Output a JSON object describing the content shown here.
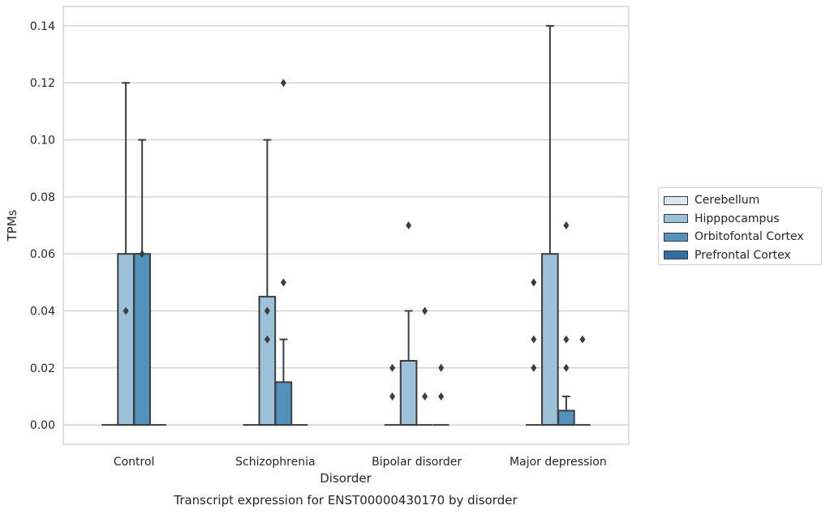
{
  "chart_data": {
    "type": "box",
    "caption": "Transcript expression for ENST00000430170 by disorder",
    "xlabel": "Disorder",
    "ylabel": "TPMs",
    "ylim": [
      -0.0068,
      0.1468
    ],
    "yticks": [
      "0.00",
      "0.02",
      "0.04",
      "0.06",
      "0.08",
      "0.10",
      "0.12",
      "0.14"
    ],
    "grid": "horizontal",
    "legend_position": "right",
    "categories": [
      "Control",
      "Schizophrenia",
      "Bipolar disorder",
      "Major depression"
    ],
    "series": [
      {
        "name": "Cerebellum",
        "color": "#dbe8f3",
        "boxes": [
          {
            "category": "Control",
            "q1": 0,
            "median": 0,
            "q3": 0,
            "whisker_low": 0,
            "whisker_high": 0,
            "outliers": []
          },
          {
            "category": "Schizophrenia",
            "q1": 0,
            "median": 0,
            "q3": 0,
            "whisker_low": 0,
            "whisker_high": 0,
            "outliers": []
          },
          {
            "category": "Bipolar disorder",
            "q1": 0,
            "median": 0,
            "q3": 0,
            "whisker_low": 0,
            "whisker_high": 0,
            "outliers": [
              0.01,
              0.02
            ]
          },
          {
            "category": "Major depression",
            "q1": 0,
            "median": 0,
            "q3": 0,
            "whisker_low": 0,
            "whisker_high": 0,
            "outliers": [
              0.02,
              0.03,
              0.05
            ]
          }
        ]
      },
      {
        "name": "Hipppocampus",
        "color": "#9cc2da",
        "boxes": [
          {
            "category": "Control",
            "q1": 0,
            "median": 0,
            "q3": 0.06,
            "whisker_low": 0,
            "whisker_high": 0.12,
            "outliers": [
              0.04
            ]
          },
          {
            "category": "Schizophrenia",
            "q1": 0,
            "median": 0,
            "q3": 0.045,
            "whisker_low": 0,
            "whisker_high": 0.1,
            "outliers": [
              0.03,
              0.04
            ]
          },
          {
            "category": "Bipolar disorder",
            "q1": 0,
            "median": 0,
            "q3": 0.0225,
            "whisker_low": 0,
            "whisker_high": 0.04,
            "outliers": [
              0.07
            ]
          },
          {
            "category": "Major depression",
            "q1": 0,
            "median": 0,
            "q3": 0.06,
            "whisker_low": 0,
            "whisker_high": 0.14,
            "outliers": []
          }
        ]
      },
      {
        "name": "Orbitofontal Cortex",
        "color": "#5192bf",
        "boxes": [
          {
            "category": "Control",
            "q1": 0,
            "median": 0,
            "q3": 0.06,
            "whisker_low": 0,
            "whisker_high": 0.1,
            "outliers": [
              0.06
            ]
          },
          {
            "category": "Schizophrenia",
            "q1": 0,
            "median": 0,
            "q3": 0.015,
            "whisker_low": 0,
            "whisker_high": 0.03,
            "outliers": [
              0.05,
              0.12
            ]
          },
          {
            "category": "Bipolar disorder",
            "q1": 0,
            "median": 0,
            "q3": 0,
            "whisker_low": 0,
            "whisker_high": 0,
            "outliers": [
              0.01,
              0.04
            ]
          },
          {
            "category": "Major depression",
            "q1": 0,
            "median": 0,
            "q3": 0.005,
            "whisker_low": 0,
            "whisker_high": 0.01,
            "outliers": [
              0.02,
              0.03,
              0.07
            ]
          }
        ]
      },
      {
        "name": "Prefrontal Cortex",
        "color": "#2f6ea6",
        "boxes": [
          {
            "category": "Control",
            "q1": 0,
            "median": 0,
            "q3": 0,
            "whisker_low": 0,
            "whisker_high": 0,
            "outliers": []
          },
          {
            "category": "Schizophrenia",
            "q1": 0,
            "median": 0,
            "q3": 0,
            "whisker_low": 0,
            "whisker_high": 0,
            "outliers": []
          },
          {
            "category": "Bipolar disorder",
            "q1": 0,
            "median": 0,
            "q3": 0,
            "whisker_low": 0,
            "whisker_high": 0,
            "outliers": [
              0.01,
              0.02
            ]
          },
          {
            "category": "Major depression",
            "q1": 0,
            "median": 0,
            "q3": 0,
            "whisker_low": 0,
            "whisker_high": 0,
            "outliers": [
              0.03
            ]
          }
        ]
      }
    ]
  }
}
